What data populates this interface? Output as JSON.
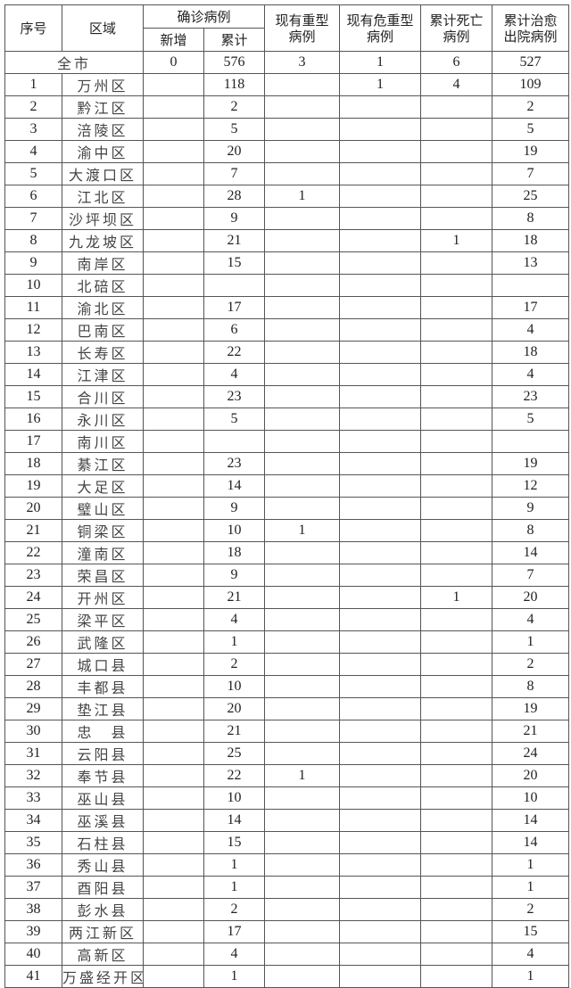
{
  "headers": {
    "index": "序号",
    "region": "区域",
    "confirmed": "确诊病例",
    "new": "新增",
    "cumulative": "累计",
    "severe": [
      "现有重型",
      "病例"
    ],
    "critical": [
      "现有危重型",
      "病例"
    ],
    "deaths": [
      "累计死亡",
      "病例"
    ],
    "recovered": [
      "累计治愈",
      "出院病例"
    ]
  },
  "total": {
    "label": "全市",
    "new": "0",
    "cumulative": "576",
    "severe": "3",
    "critical": "1",
    "deaths": "6",
    "recovered": "527"
  },
  "rows": [
    {
      "no": "1",
      "region": "万州区",
      "new": "",
      "cum": "118",
      "severe": "",
      "critical": "1",
      "deaths": "4",
      "recovered": "109"
    },
    {
      "no": "2",
      "region": "黔江区",
      "new": "",
      "cum": "2",
      "severe": "",
      "critical": "",
      "deaths": "",
      "recovered": "2"
    },
    {
      "no": "3",
      "region": "涪陵区",
      "new": "",
      "cum": "5",
      "severe": "",
      "critical": "",
      "deaths": "",
      "recovered": "5"
    },
    {
      "no": "4",
      "region": "渝中区",
      "new": "",
      "cum": "20",
      "severe": "",
      "critical": "",
      "deaths": "",
      "recovered": "19"
    },
    {
      "no": "5",
      "region": "大渡口区",
      "new": "",
      "cum": "7",
      "severe": "",
      "critical": "",
      "deaths": "",
      "recovered": "7"
    },
    {
      "no": "6",
      "region": "江北区",
      "new": "",
      "cum": "28",
      "severe": "1",
      "critical": "",
      "deaths": "",
      "recovered": "25"
    },
    {
      "no": "7",
      "region": "沙坪坝区",
      "new": "",
      "cum": "9",
      "severe": "",
      "critical": "",
      "deaths": "",
      "recovered": "8"
    },
    {
      "no": "8",
      "region": "九龙坡区",
      "new": "",
      "cum": "21",
      "severe": "",
      "critical": "",
      "deaths": "1",
      "recovered": "18"
    },
    {
      "no": "9",
      "region": "南岸区",
      "new": "",
      "cum": "15",
      "severe": "",
      "critical": "",
      "deaths": "",
      "recovered": "13"
    },
    {
      "no": "10",
      "region": "北碚区",
      "new": "",
      "cum": "",
      "severe": "",
      "critical": "",
      "deaths": "",
      "recovered": ""
    },
    {
      "no": "11",
      "region": "渝北区",
      "new": "",
      "cum": "17",
      "severe": "",
      "critical": "",
      "deaths": "",
      "recovered": "17"
    },
    {
      "no": "12",
      "region": "巴南区",
      "new": "",
      "cum": "6",
      "severe": "",
      "critical": "",
      "deaths": "",
      "recovered": "4"
    },
    {
      "no": "13",
      "region": "长寿区",
      "new": "",
      "cum": "22",
      "severe": "",
      "critical": "",
      "deaths": "",
      "recovered": "18"
    },
    {
      "no": "14",
      "region": "江津区",
      "new": "",
      "cum": "4",
      "severe": "",
      "critical": "",
      "deaths": "",
      "recovered": "4"
    },
    {
      "no": "15",
      "region": "合川区",
      "new": "",
      "cum": "23",
      "severe": "",
      "critical": "",
      "deaths": "",
      "recovered": "23"
    },
    {
      "no": "16",
      "region": "永川区",
      "new": "",
      "cum": "5",
      "severe": "",
      "critical": "",
      "deaths": "",
      "recovered": "5"
    },
    {
      "no": "17",
      "region": "南川区",
      "new": "",
      "cum": "",
      "severe": "",
      "critical": "",
      "deaths": "",
      "recovered": ""
    },
    {
      "no": "18",
      "region": "綦江区",
      "new": "",
      "cum": "23",
      "severe": "",
      "critical": "",
      "deaths": "",
      "recovered": "19"
    },
    {
      "no": "19",
      "region": "大足区",
      "new": "",
      "cum": "14",
      "severe": "",
      "critical": "",
      "deaths": "",
      "recovered": "12"
    },
    {
      "no": "20",
      "region": "璧山区",
      "new": "",
      "cum": "9",
      "severe": "",
      "critical": "",
      "deaths": "",
      "recovered": "9"
    },
    {
      "no": "21",
      "region": "铜梁区",
      "new": "",
      "cum": "10",
      "severe": "1",
      "critical": "",
      "deaths": "",
      "recovered": "8"
    },
    {
      "no": "22",
      "region": "潼南区",
      "new": "",
      "cum": "18",
      "severe": "",
      "critical": "",
      "deaths": "",
      "recovered": "14"
    },
    {
      "no": "23",
      "region": "荣昌区",
      "new": "",
      "cum": "9",
      "severe": "",
      "critical": "",
      "deaths": "",
      "recovered": "7"
    },
    {
      "no": "24",
      "region": "开州区",
      "new": "",
      "cum": "21",
      "severe": "",
      "critical": "",
      "deaths": "1",
      "recovered": "20"
    },
    {
      "no": "25",
      "region": "梁平区",
      "new": "",
      "cum": "4",
      "severe": "",
      "critical": "",
      "deaths": "",
      "recovered": "4"
    },
    {
      "no": "26",
      "region": "武隆区",
      "new": "",
      "cum": "1",
      "severe": "",
      "critical": "",
      "deaths": "",
      "recovered": "1"
    },
    {
      "no": "27",
      "region": "城口县",
      "new": "",
      "cum": "2",
      "severe": "",
      "critical": "",
      "deaths": "",
      "recovered": "2"
    },
    {
      "no": "28",
      "region": "丰都县",
      "new": "",
      "cum": "10",
      "severe": "",
      "critical": "",
      "deaths": "",
      "recovered": "8"
    },
    {
      "no": "29",
      "region": "垫江县",
      "new": "",
      "cum": "20",
      "severe": "",
      "critical": "",
      "deaths": "",
      "recovered": "19"
    },
    {
      "no": "30",
      "region": "忠　县",
      "new": "",
      "cum": "21",
      "severe": "",
      "critical": "",
      "deaths": "",
      "recovered": "21"
    },
    {
      "no": "31",
      "region": "云阳县",
      "new": "",
      "cum": "25",
      "severe": "",
      "critical": "",
      "deaths": "",
      "recovered": "24"
    },
    {
      "no": "32",
      "region": "奉节县",
      "new": "",
      "cum": "22",
      "severe": "1",
      "critical": "",
      "deaths": "",
      "recovered": "20"
    },
    {
      "no": "33",
      "region": "巫山县",
      "new": "",
      "cum": "10",
      "severe": "",
      "critical": "",
      "deaths": "",
      "recovered": "10"
    },
    {
      "no": "34",
      "region": "巫溪县",
      "new": "",
      "cum": "14",
      "severe": "",
      "critical": "",
      "deaths": "",
      "recovered": "14"
    },
    {
      "no": "35",
      "region": "石柱县",
      "new": "",
      "cum": "15",
      "severe": "",
      "critical": "",
      "deaths": "",
      "recovered": "14"
    },
    {
      "no": "36",
      "region": "秀山县",
      "new": "",
      "cum": "1",
      "severe": "",
      "critical": "",
      "deaths": "",
      "recovered": "1"
    },
    {
      "no": "37",
      "region": "酉阳县",
      "new": "",
      "cum": "1",
      "severe": "",
      "critical": "",
      "deaths": "",
      "recovered": "1"
    },
    {
      "no": "38",
      "region": "彭水县",
      "new": "",
      "cum": "2",
      "severe": "",
      "critical": "",
      "deaths": "",
      "recovered": "2"
    },
    {
      "no": "39",
      "region": "两江新区",
      "new": "",
      "cum": "17",
      "severe": "",
      "critical": "",
      "deaths": "",
      "recovered": "15"
    },
    {
      "no": "40",
      "region": "高新区",
      "new": "",
      "cum": "4",
      "severe": "",
      "critical": "",
      "deaths": "",
      "recovered": "4"
    },
    {
      "no": "41",
      "region": "万盛经开区",
      "new": "",
      "cum": "1",
      "severe": "",
      "critical": "",
      "deaths": "",
      "recovered": "1"
    }
  ]
}
